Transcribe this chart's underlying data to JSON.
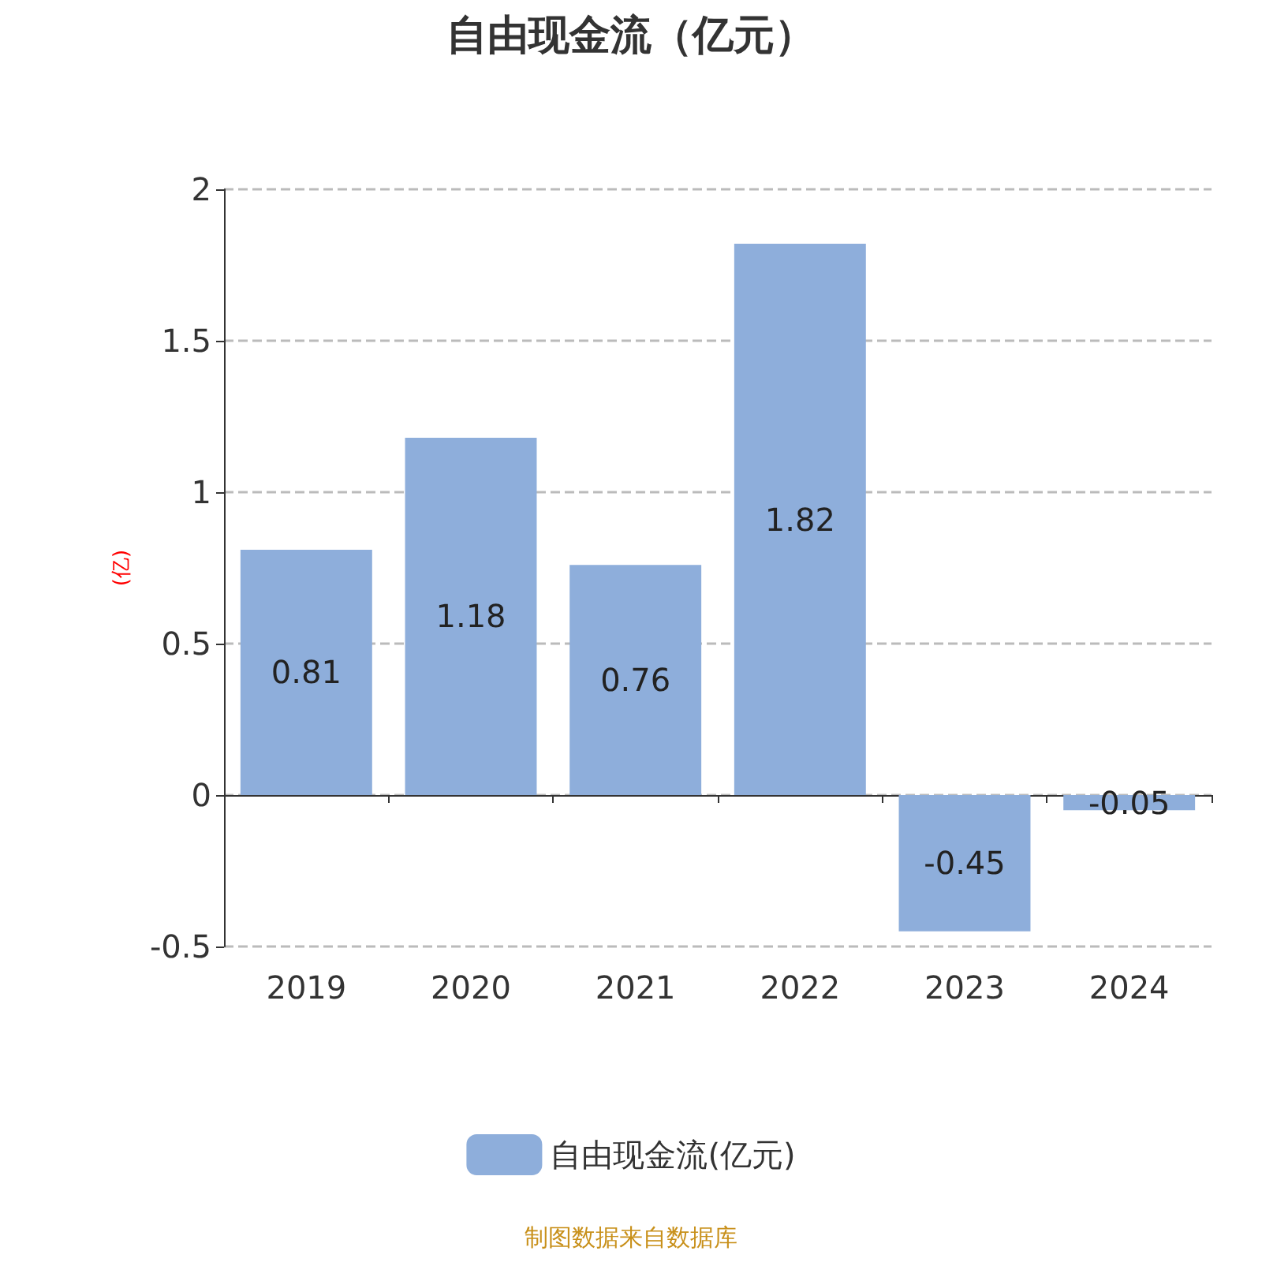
{
  "chart_data": {
    "type": "bar",
    "title": "自由现金流（亿元）",
    "ylabel": "(亿)",
    "categories": [
      "2019",
      "2020",
      "2021",
      "2022",
      "2023",
      "2024"
    ],
    "series": [
      {
        "name": "自由现金流(亿元)",
        "color": "#8eaedb",
        "values": [
          0.81,
          1.18,
          0.76,
          1.82,
          -0.45,
          -0.05
        ]
      }
    ],
    "ylim": [
      -0.5,
      2
    ],
    "yticks": [
      {
        "value": -0.5,
        "label": "-0.5"
      },
      0,
      {
        "value": 0.5,
        "label": "0.5"
      },
      1,
      {
        "value": 1.5,
        "label": "1.5"
      },
      2
    ],
    "grid": "y",
    "legend": "bottom",
    "data_labels": true,
    "annotations": [
      "制图数据来自数据库"
    ]
  }
}
